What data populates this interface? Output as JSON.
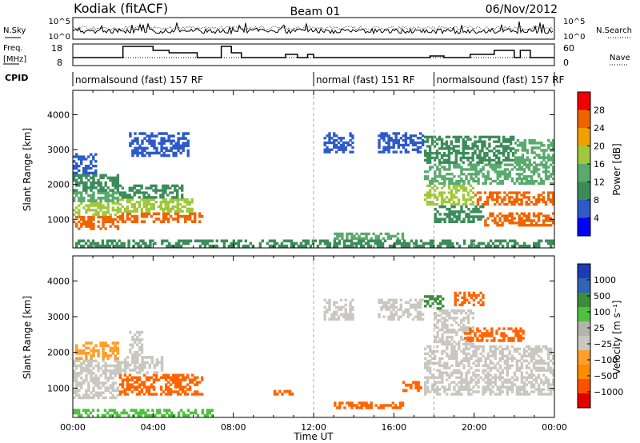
{
  "header": {
    "station": "Kodiak (fitACF)",
    "beam": "Beam 01",
    "date": "06/Nov/2012"
  },
  "top_panels": {
    "nsky_label": "N.Sky",
    "nsearch_label": "N.Search",
    "noise_ticks": [
      "10^5",
      "10^0"
    ],
    "freq_label_line1": "Freq.",
    "freq_label_line2": "[MHz]",
    "freq_ticks": [
      "18",
      "8"
    ],
    "nave_label": "Nave",
    "nave_ticks": [
      "60",
      "0"
    ],
    "cpid_label": "CPID",
    "cpid_segments": [
      {
        "label": "normalsound (fast) 157 RF",
        "start_hour": 0,
        "end_hour": 12
      },
      {
        "label": "normal (fast) 151 RF",
        "start_hour": 12,
        "end_hour": 18
      },
      {
        "label": "normalsound (fast) 157 RF",
        "start_hour": 18,
        "end_hour": 24
      }
    ]
  },
  "colors": {
    "power_scale": [
      "#0000ff",
      "#2d5ac9",
      "#3c8c5a",
      "#5aaa6e",
      "#a0c83c",
      "#f0a000",
      "#f06400",
      "#f00000"
    ],
    "velocity_scale": [
      "#e00000",
      "#ff5000",
      "#ff8c00",
      "#ff9e28",
      "#c8c8c0",
      "#b4b4aa",
      "#50c040",
      "#3c8c3c",
      "#3264b4",
      "#1e3cb4"
    ],
    "ground_scatter": "#b4b4aa"
  },
  "chart_data": [
    {
      "type": "heatmap",
      "name": "power",
      "ylabel": "Slant Range [km]",
      "colorbar_label": "Power [dB]",
      "colorbar_ticks": [
        "28",
        "24",
        "20",
        "16",
        "12",
        "8",
        "4"
      ],
      "colorbar_range": [
        0,
        32
      ],
      "x_range_hours": [
        0,
        24
      ],
      "y_range_km": [
        180,
        4700
      ],
      "yticks": [
        "4000",
        "3000",
        "2000",
        "1000"
      ],
      "cells": [
        {
          "t0": 0.0,
          "t1": 2.3,
          "r0": 700,
          "r1": 1100,
          "value": 27
        },
        {
          "t0": 0.0,
          "t1": 2.3,
          "r0": 1100,
          "r1": 1500,
          "value": 18
        },
        {
          "t0": 0.0,
          "t1": 2.3,
          "r0": 1500,
          "r1": 1800,
          "value": 14
        },
        {
          "t0": 0.0,
          "t1": 2.3,
          "r0": 1800,
          "r1": 2300,
          "value": 10
        },
        {
          "t0": 0.0,
          "t1": 1.2,
          "r0": 2300,
          "r1": 2900,
          "value": 6
        },
        {
          "t0": 2.3,
          "t1": 6.5,
          "r0": 900,
          "r1": 1200,
          "value": 25
        },
        {
          "t0": 2.3,
          "t1": 6.0,
          "r0": 1200,
          "r1": 1600,
          "value": 17
        },
        {
          "t0": 2.3,
          "t1": 5.5,
          "r0": 1600,
          "r1": 2000,
          "value": 10
        },
        {
          "t0": 2.8,
          "t1": 5.8,
          "r0": 2800,
          "r1": 3500,
          "value": 5
        },
        {
          "t0": 12.5,
          "t1": 14.0,
          "r0": 2900,
          "r1": 3500,
          "value": 6
        },
        {
          "t0": 15.2,
          "t1": 17.5,
          "r0": 2900,
          "r1": 3500,
          "value": 6
        },
        {
          "t0": 13.0,
          "t1": 16.5,
          "r0": 420,
          "r1": 620,
          "value": 14
        },
        {
          "t0": 7.0,
          "t1": 24.0,
          "r0": 200,
          "r1": 420,
          "value": 8
        },
        {
          "t0": 0.0,
          "t1": 7.0,
          "r0": 200,
          "r1": 420,
          "value": 10
        },
        {
          "t0": 17.5,
          "t1": 20.0,
          "r0": 1400,
          "r1": 2000,
          "value": 16
        },
        {
          "t0": 20.0,
          "t1": 24.0,
          "r0": 1400,
          "r1": 1800,
          "value": 24
        },
        {
          "t0": 20.5,
          "t1": 24.0,
          "r0": 800,
          "r1": 1200,
          "value": 26
        },
        {
          "t0": 17.5,
          "t1": 24.0,
          "r0": 2000,
          "r1": 2600,
          "value": 15
        },
        {
          "t0": 17.5,
          "t1": 22.0,
          "r0": 2600,
          "r1": 3400,
          "value": 8
        },
        {
          "t0": 18.0,
          "t1": 20.5,
          "r0": 900,
          "r1": 1400,
          "value": 11
        },
        {
          "t0": 22.0,
          "t1": 24.0,
          "r0": 2600,
          "r1": 3300,
          "value": 12
        }
      ]
    },
    {
      "type": "heatmap",
      "name": "velocity",
      "ylabel": "Slant Range [km]",
      "xlabel": "Time UT",
      "colorbar_label": "Velocity [m s⁻¹]",
      "colorbar_ticks": [
        "1000",
        "500",
        "100",
        "25",
        "−25",
        "−100",
        "−500",
        "−1000"
      ],
      "x_range_hours": [
        0,
        24
      ],
      "xticks": [
        "00:00",
        "04:00",
        "08:00",
        "12:00",
        "16:00",
        "20:00",
        "00:00"
      ],
      "y_range_km": [
        180,
        4700
      ],
      "yticks": [
        "4000",
        "3000",
        "2000",
        "1000"
      ],
      "cells": [
        {
          "t0": 0.0,
          "t1": 2.3,
          "r0": 700,
          "r1": 1800,
          "value": 0
        },
        {
          "t0": 0.0,
          "t1": 2.3,
          "r0": 1800,
          "r1": 2300,
          "value": -60
        },
        {
          "t0": 2.3,
          "t1": 6.5,
          "r0": 800,
          "r1": 1400,
          "value": -350
        },
        {
          "t0": 2.3,
          "t1": 4.5,
          "r0": 1400,
          "r1": 1900,
          "value": 0
        },
        {
          "t0": 2.8,
          "t1": 3.5,
          "r0": 1900,
          "r1": 2600,
          "value": 0
        },
        {
          "t0": 12.5,
          "t1": 14.0,
          "r0": 2900,
          "r1": 3500,
          "value": 0
        },
        {
          "t0": 15.2,
          "t1": 17.5,
          "r0": 2900,
          "r1": 3500,
          "value": 0
        },
        {
          "t0": 13.0,
          "t1": 16.5,
          "r0": 420,
          "r1": 620,
          "value": -300
        },
        {
          "t0": 10.0,
          "t1": 11.0,
          "r0": 800,
          "r1": 950,
          "value": -350
        },
        {
          "t0": 16.3,
          "t1": 17.4,
          "r0": 900,
          "r1": 1200,
          "value": -400
        },
        {
          "t0": 17.5,
          "t1": 24.0,
          "r0": 800,
          "r1": 2200,
          "value": 0
        },
        {
          "t0": 18.0,
          "t1": 20.0,
          "r0": 2200,
          "r1": 3200,
          "value": 0
        },
        {
          "t0": 19.5,
          "t1": 22.5,
          "r0": 2300,
          "r1": 2700,
          "value": -400
        },
        {
          "t0": 19.0,
          "t1": 20.5,
          "r0": 3300,
          "r1": 3700,
          "value": -300
        },
        {
          "t0": 17.5,
          "t1": 18.5,
          "r0": 3200,
          "r1": 3600,
          "value": 150
        },
        {
          "t0": 0.0,
          "t1": 7.0,
          "r0": 200,
          "r1": 420,
          "value": 60
        }
      ]
    }
  ]
}
